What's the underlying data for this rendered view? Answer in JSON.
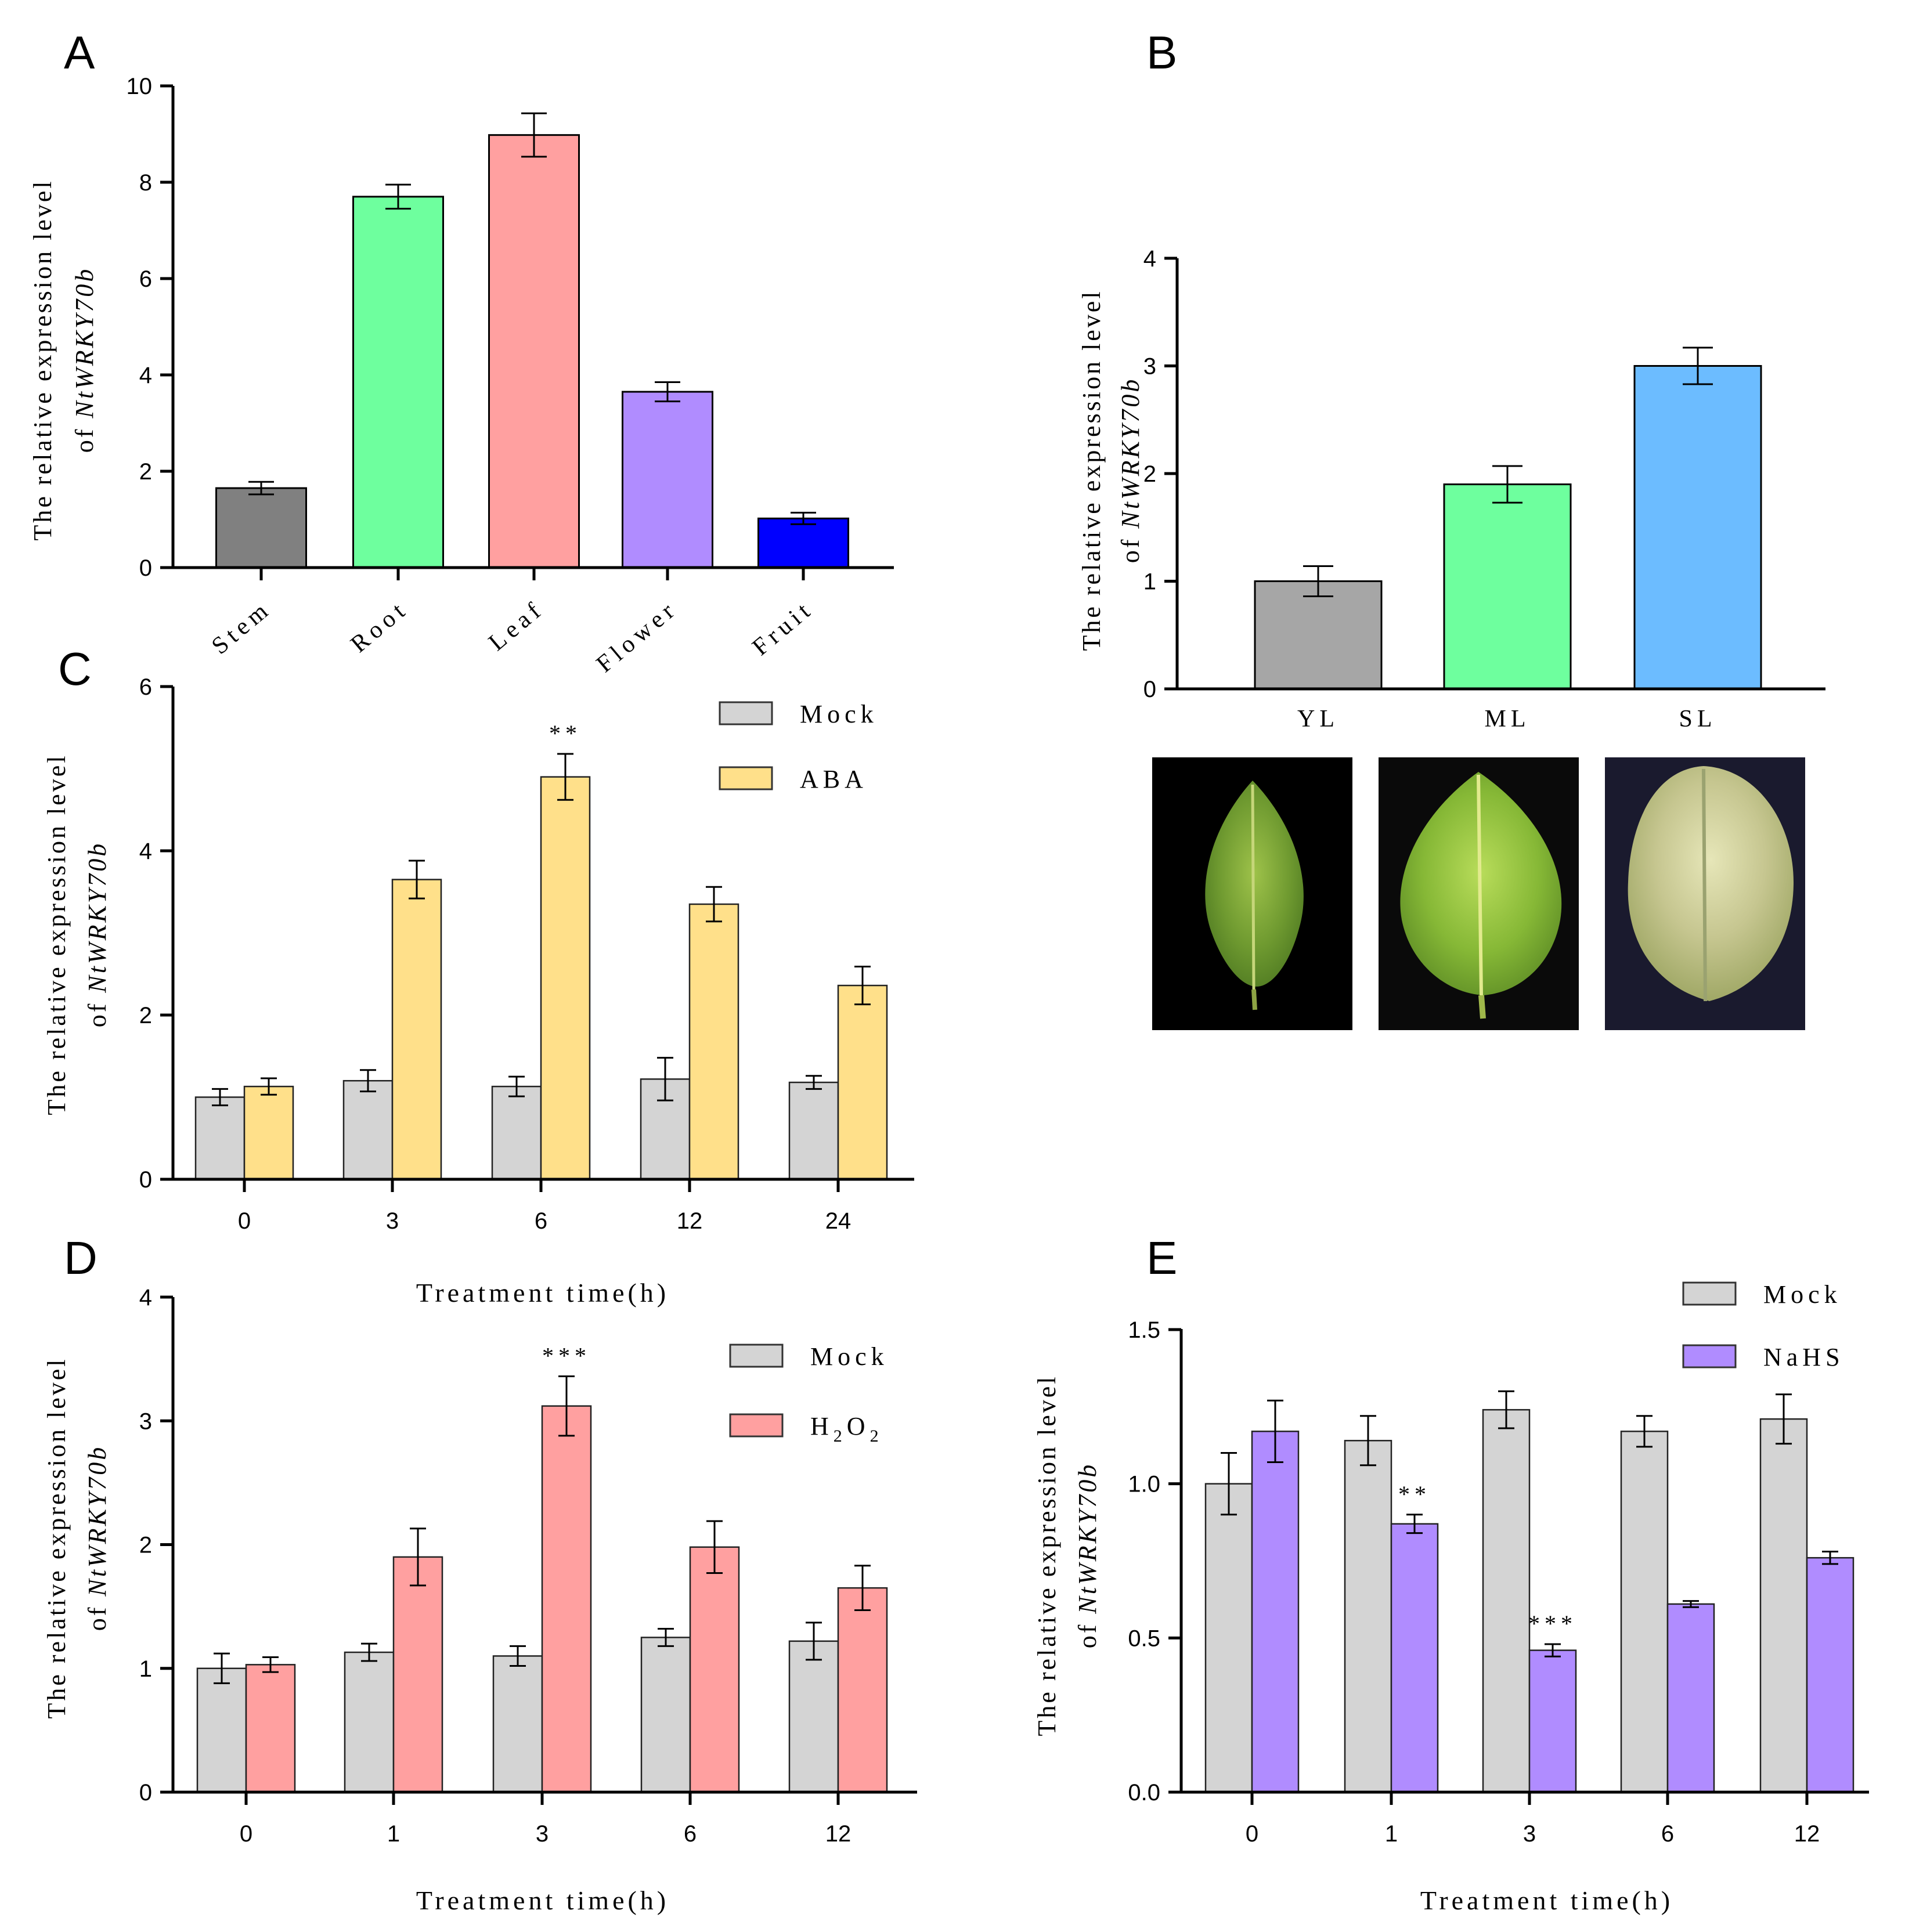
{
  "chart_data": [
    {
      "panel": "A",
      "type": "bar",
      "ylabel_line1": "The relative expression level",
      "ylabel_line2_prefix": "of ",
      "gene": "NtWRKY70b",
      "categories": [
        "Stem",
        "Root",
        "Leaf",
        "Flower",
        "Fruit"
      ],
      "values": [
        1.65,
        7.7,
        8.98,
        3.65,
        1.02
      ],
      "errors": [
        0.13,
        0.25,
        0.45,
        0.2,
        0.12
      ],
      "colors": [
        "#808080",
        "#6eff9e",
        "#ffa0a0",
        "#b08cff",
        "#0000ff"
      ],
      "ylim": [
        0,
        10
      ],
      "yticks": [
        "0",
        "2",
        "4",
        "6",
        "8",
        "10"
      ]
    },
    {
      "panel": "B",
      "type": "bar",
      "ylabel_line1": "The relative expression level",
      "ylabel_line2_prefix": "of ",
      "gene": "NtWRKY70b",
      "categories": [
        "YL",
        "ML",
        "SL"
      ],
      "values": [
        1.0,
        1.9,
        3.0
      ],
      "errors": [
        0.14,
        0.17,
        0.17
      ],
      "colors": [
        "#a6a6a6",
        "#6eff9e",
        "#6cbcff"
      ],
      "ylim": [
        0,
        4
      ],
      "yticks": [
        "0",
        "1",
        "2",
        "3",
        "4"
      ],
      "images": [
        "young leaf",
        "mature leaf",
        "senescent leaf"
      ]
    },
    {
      "panel": "C",
      "type": "bar",
      "ylabel_line1": "The relative expression level",
      "ylabel_line2_prefix": "of ",
      "gene": "NtWRKY70b",
      "xlabel": "Treatment time(h)",
      "categories": [
        "0",
        "3",
        "6",
        "12",
        "24"
      ],
      "series": [
        {
          "name": "Mock",
          "color": "#d4d4d4",
          "values": [
            1.0,
            1.2,
            1.13,
            1.22,
            1.18
          ],
          "errors": [
            0.1,
            0.13,
            0.12,
            0.26,
            0.08
          ]
        },
        {
          "name": "ABA",
          "color": "#ffe08a",
          "values": [
            1.13,
            3.65,
            4.9,
            3.35,
            2.36
          ],
          "errors": [
            0.1,
            0.23,
            0.28,
            0.21,
            0.23
          ]
        }
      ],
      "significance": [
        {
          "category": 2,
          "series": 1,
          "label": "**"
        }
      ],
      "ylim": [
        0,
        6
      ],
      "yticks": [
        "0",
        "2",
        "4",
        "6"
      ]
    },
    {
      "panel": "D",
      "type": "bar",
      "ylabel_line1": "The relative expression level",
      "ylabel_line2_prefix": "of ",
      "gene": "NtWRKY70b",
      "xlabel": "Treatment time(h)",
      "categories": [
        "0",
        "1",
        "3",
        "6",
        "12"
      ],
      "series": [
        {
          "name": "Mock",
          "color": "#d4d4d4",
          "values": [
            1.0,
            1.13,
            1.1,
            1.25,
            1.22
          ],
          "errors": [
            0.12,
            0.07,
            0.08,
            0.07,
            0.15
          ]
        },
        {
          "name": "H2O2",
          "color": "#ffa0a0",
          "values": [
            1.03,
            1.9,
            3.12,
            1.98,
            1.65
          ],
          "errors": [
            0.06,
            0.23,
            0.24,
            0.21,
            0.18
          ]
        }
      ],
      "legend_h2o2": {
        "h": "H",
        "sub1": "2",
        "o": "O",
        "sub2": "2"
      },
      "significance": [
        {
          "category": 2,
          "series": 1,
          "label": "***"
        }
      ],
      "ylim": [
        0,
        4
      ],
      "yticks": [
        "0",
        "1",
        "2",
        "3",
        "4"
      ]
    },
    {
      "panel": "E",
      "type": "bar",
      "ylabel_line1": "The relative expression level",
      "ylabel_line2_prefix": "of ",
      "gene": "NtWRKY70b",
      "xlabel": "Treatment time(h)",
      "categories": [
        "0",
        "1",
        "3",
        "6",
        "12"
      ],
      "series": [
        {
          "name": "Mock",
          "color": "#d4d4d4",
          "values": [
            1.0,
            1.14,
            1.24,
            1.17,
            1.21
          ],
          "errors": [
            0.1,
            0.08,
            0.06,
            0.05,
            0.08
          ]
        },
        {
          "name": "NaHS",
          "color": "#b08cff",
          "values": [
            1.17,
            0.87,
            0.46,
            0.61,
            0.76
          ],
          "errors": [
            0.1,
            0.03,
            0.02,
            0.01,
            0.02
          ]
        }
      ],
      "significance": [
        {
          "category": 1,
          "series": 1,
          "label": "**"
        },
        {
          "category": 2,
          "series": 1,
          "label": "***"
        }
      ],
      "ylim": [
        0,
        1.5
      ],
      "yticks": [
        "0.0",
        "0.5",
        "1.0",
        "1.5"
      ]
    }
  ]
}
